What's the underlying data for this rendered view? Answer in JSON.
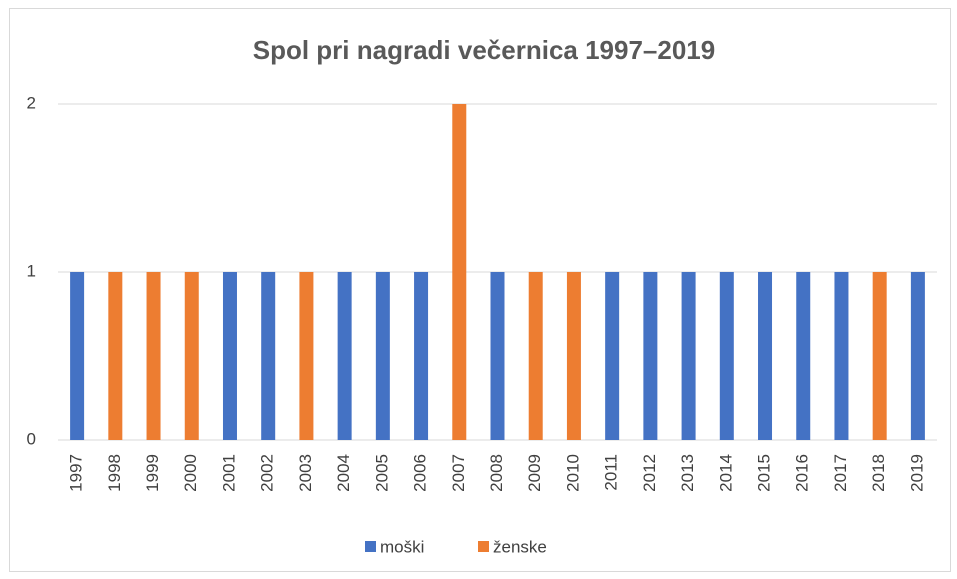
{
  "chart_data": {
    "type": "stacked_bar",
    "title": "Spol pri nagradi večernica 1997–2019",
    "categories": [
      "1997",
      "1998",
      "1999",
      "2000",
      "2001",
      "2002",
      "2003",
      "2004",
      "2005",
      "2006",
      "2007",
      "2008",
      "2009",
      "2010",
      "2011",
      "2012",
      "2013",
      "2014",
      "2015",
      "2016",
      "2017",
      "2018",
      "2019"
    ],
    "series": [
      {
        "name": "moški",
        "color": "#4472c4",
        "values": [
          1,
          0,
          0,
          0,
          1,
          1,
          0,
          1,
          1,
          1,
          0,
          1,
          0,
          0,
          1,
          1,
          1,
          1,
          1,
          1,
          1,
          0,
          1
        ]
      },
      {
        "name": "ženske",
        "color": "#ed7d31",
        "values": [
          0,
          1,
          1,
          1,
          0,
          0,
          1,
          0,
          0,
          0,
          2,
          0,
          1,
          1,
          0,
          0,
          0,
          0,
          0,
          0,
          0,
          1,
          0
        ]
      }
    ],
    "ylim": [
      0,
      2
    ],
    "yticks": [
      0,
      1,
      2
    ],
    "grid": true,
    "legend": "bottom"
  }
}
